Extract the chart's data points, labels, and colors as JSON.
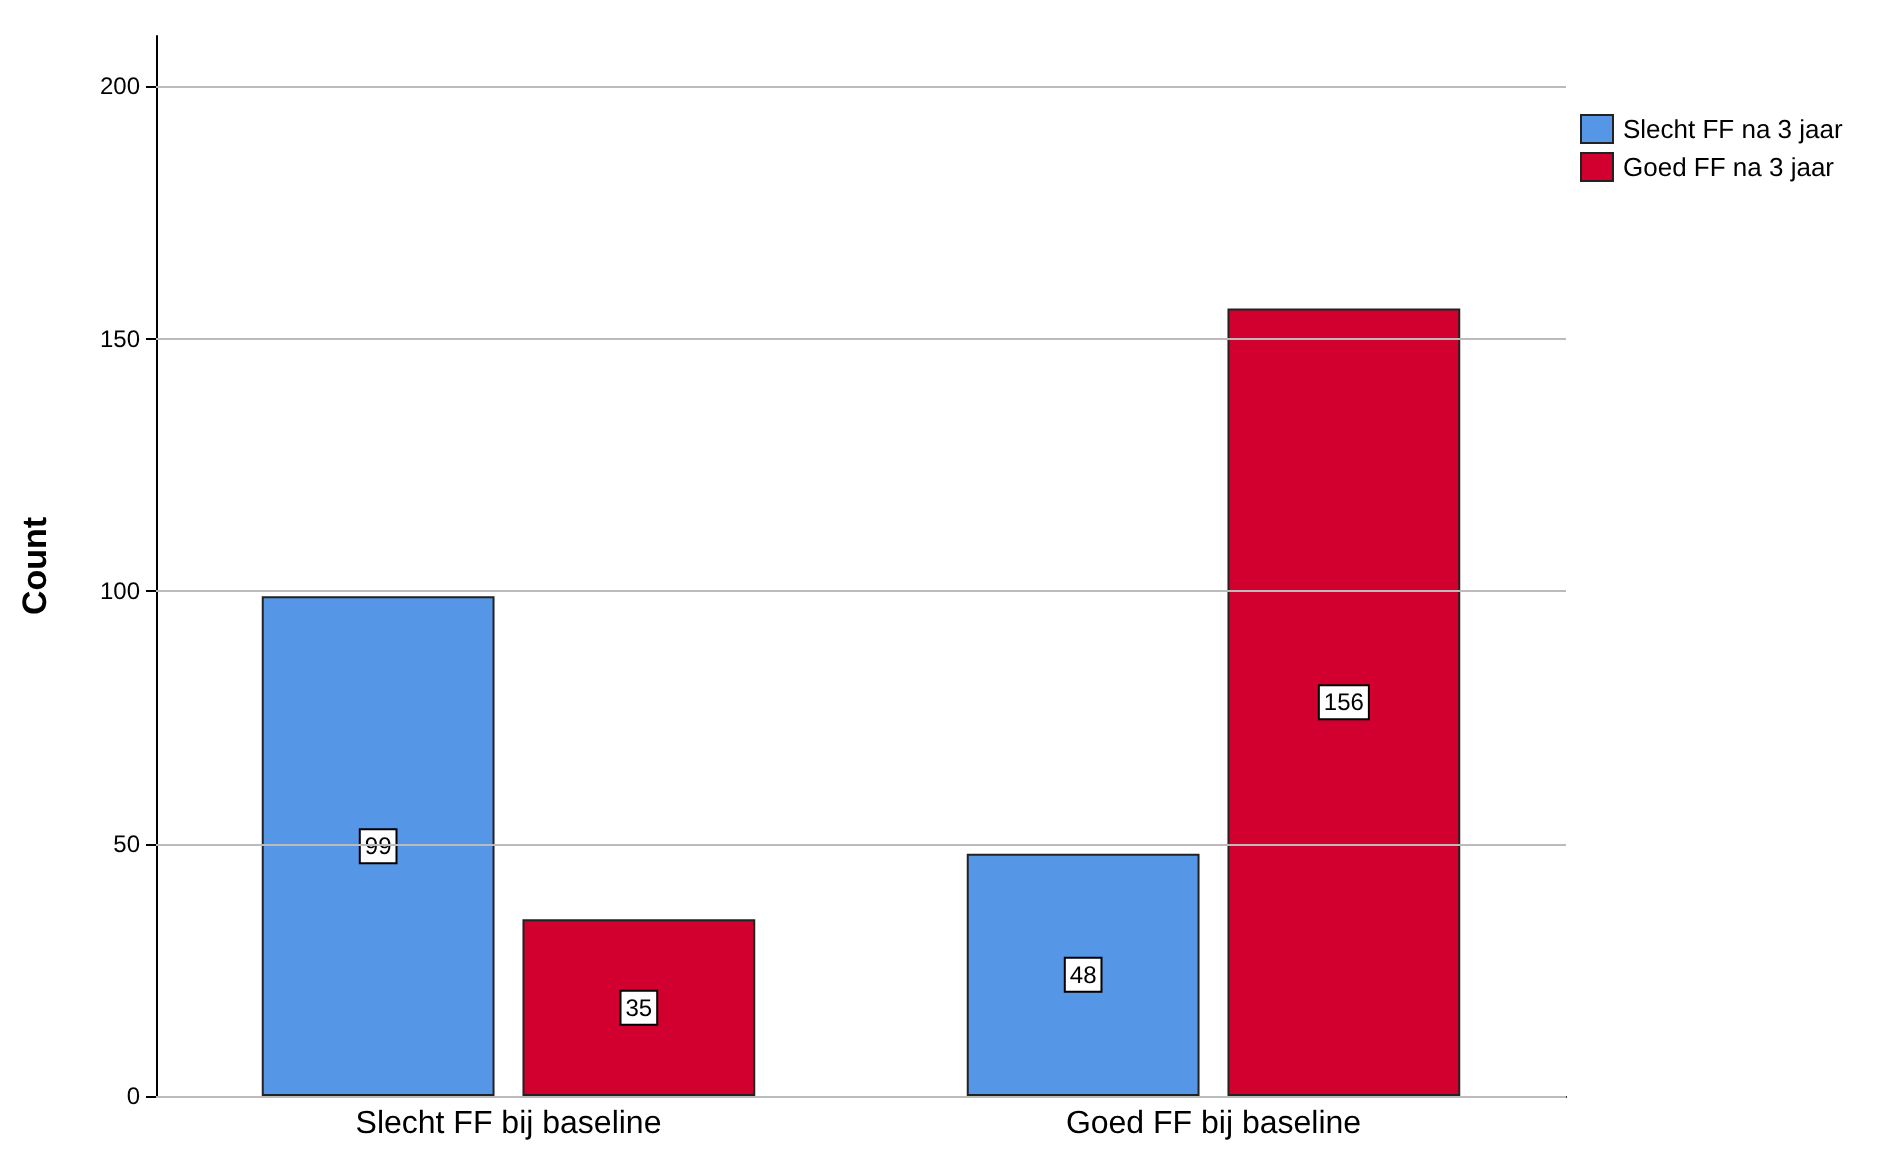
{
  "chart_data": {
    "type": "bar",
    "ylabel": "Count",
    "categories": [
      "Slecht FF bij baseline",
      "Goed FF bij baseline"
    ],
    "series": [
      {
        "name": "Slecht FF na 3 jaar",
        "color": "#5596e6",
        "values": [
          99,
          48
        ]
      },
      {
        "name": "Goed FF na 3 jaar",
        "color": "#d2002e",
        "values": [
          35,
          156
        ]
      }
    ],
    "ylim": [
      0,
      210
    ],
    "yticks": [
      0,
      50,
      100,
      150,
      200
    ],
    "grid": "y",
    "legend": "top right",
    "data_labels": true
  }
}
